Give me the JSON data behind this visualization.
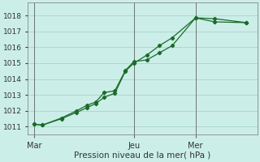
{
  "xlabel": "Pression niveau de la mer( hPa )",
  "background_color": "#cceee8",
  "grid_color": "#aad8cc",
  "line_color": "#1a6b2a",
  "ylim": [
    1010.5,
    1018.8
  ],
  "yticks": [
    1011,
    1012,
    1013,
    1014,
    1015,
    1016,
    1017,
    1018
  ],
  "day_labels": [
    "Mar",
    "Jeu",
    "Mer"
  ],
  "day_positions": [
    0.0,
    0.47,
    0.76
  ],
  "series1_x": [
    0.0,
    0.04,
    0.13,
    0.2,
    0.25,
    0.29,
    0.33,
    0.38,
    0.43,
    0.47,
    0.53,
    0.59,
    0.65,
    0.76,
    0.85,
    1.0
  ],
  "series1_y": [
    1011.15,
    1011.1,
    1011.5,
    1011.9,
    1012.2,
    1012.45,
    1012.85,
    1013.1,
    1014.5,
    1015.0,
    1015.5,
    1016.1,
    1016.6,
    1017.85,
    1017.8,
    1017.55
  ],
  "series2_x": [
    0.0,
    0.04,
    0.13,
    0.2,
    0.25,
    0.29,
    0.33,
    0.38,
    0.43,
    0.47,
    0.53,
    0.59,
    0.65,
    0.76,
    0.85,
    1.0
  ],
  "series2_y": [
    1011.15,
    1011.1,
    1011.55,
    1012.0,
    1012.35,
    1012.55,
    1013.15,
    1013.25,
    1014.55,
    1015.1,
    1015.2,
    1015.65,
    1016.1,
    1017.85,
    1017.6,
    1017.55
  ],
  "xlim": [
    -0.03,
    1.05
  ]
}
